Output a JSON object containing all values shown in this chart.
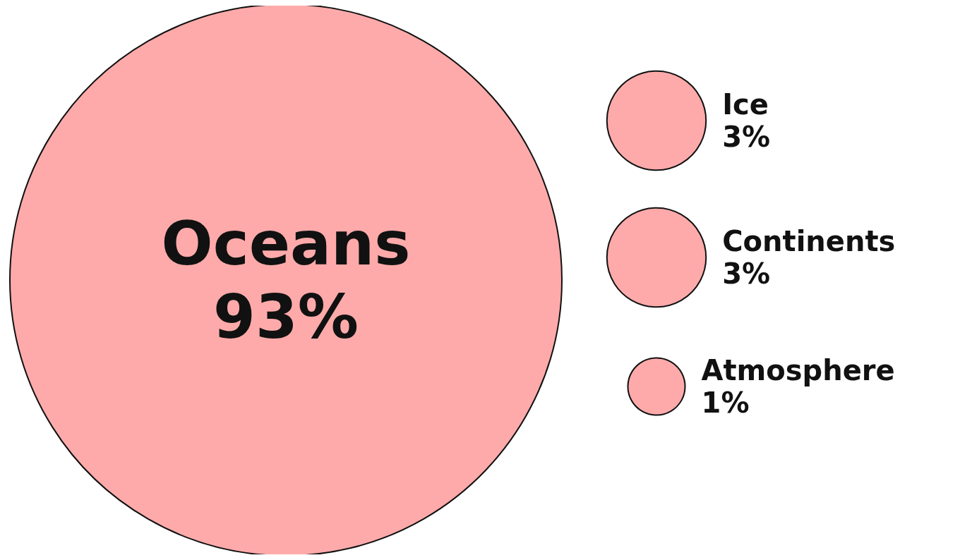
{
  "chart_data": {
    "type": "other",
    "categories": [
      "Oceans",
      "Ice",
      "Continents",
      "Atmosphere"
    ],
    "values": [
      93,
      3,
      3,
      1
    ],
    "value_labels": [
      "93%",
      "3%",
      "3%",
      "1%"
    ],
    "color": "#ffaaaa"
  }
}
